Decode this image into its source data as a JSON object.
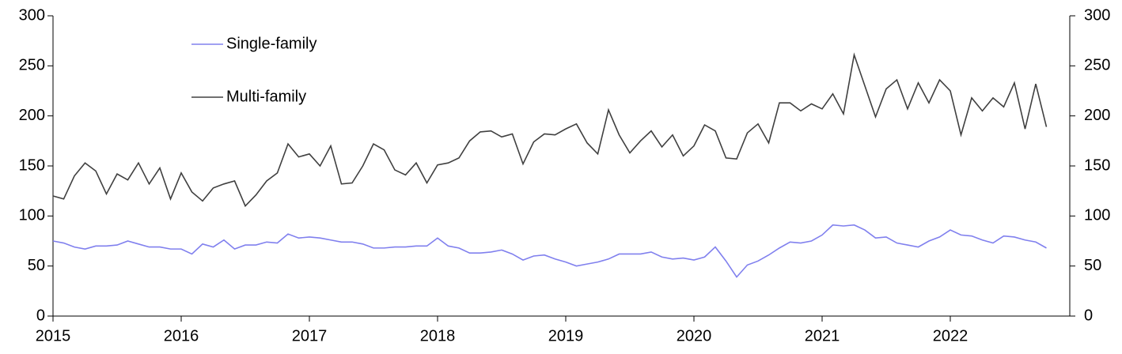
{
  "chart_data": {
    "type": "line",
    "categories": [
      "2015",
      null,
      null,
      null,
      null,
      null,
      null,
      null,
      null,
      null,
      null,
      null,
      "2016",
      null,
      null,
      null,
      null,
      null,
      null,
      null,
      null,
      null,
      null,
      null,
      "2017",
      null,
      null,
      null,
      null,
      null,
      null,
      null,
      null,
      null,
      null,
      null,
      "2018",
      null,
      null,
      null,
      null,
      null,
      null,
      null,
      null,
      null,
      null,
      null,
      "2019",
      null,
      null,
      null,
      null,
      null,
      null,
      null,
      null,
      null,
      null,
      null,
      "2020",
      null,
      null,
      null,
      null,
      null,
      null,
      null,
      null,
      null,
      null,
      null,
      "2021",
      null,
      null,
      null,
      null,
      null,
      null,
      null,
      null,
      null,
      null,
      null,
      "2022",
      null,
      null,
      null,
      null,
      null,
      null,
      null,
      null,
      null
    ],
    "series": [
      {
        "name": "Single-family",
        "color": "#8080ee",
        "values": [
          75,
          73,
          69,
          67,
          70,
          70,
          71,
          75,
          72,
          69,
          69,
          67,
          67,
          62,
          72,
          69,
          76,
          67,
          71,
          71,
          74,
          73,
          82,
          78,
          79,
          78,
          76,
          74,
          74,
          72,
          68,
          68,
          69,
          69,
          70,
          70,
          78,
          70,
          68,
          63,
          63,
          64,
          66,
          62,
          56,
          60,
          61,
          57,
          54,
          50,
          52,
          54,
          57,
          62,
          62,
          62,
          64,
          59,
          57,
          58,
          56,
          59,
          69,
          55,
          39,
          51,
          55,
          61,
          68,
          74,
          73,
          75,
          81,
          91,
          90,
          91,
          86,
          78,
          79,
          73,
          71,
          69,
          75,
          79,
          86,
          81,
          80,
          76,
          73,
          80,
          79,
          76,
          74,
          68
        ]
      },
      {
        "name": "Multi-family",
        "color": "#404040",
        "values": [
          120,
          117,
          140,
          153,
          145,
          122,
          142,
          136,
          153,
          132,
          148,
          117,
          143,
          124,
          115,
          128,
          132,
          135,
          110,
          121,
          135,
          143,
          172,
          159,
          162,
          150,
          170,
          132,
          133,
          150,
          172,
          166,
          146,
          141,
          153,
          133,
          151,
          153,
          158,
          175,
          184,
          185,
          179,
          182,
          152,
          174,
          182,
          181,
          187,
          192,
          173,
          162,
          206,
          181,
          163,
          175,
          185,
          169,
          181,
          160,
          170,
          191,
          185,
          158,
          157,
          183,
          192,
          173,
          213,
          213,
          205,
          212,
          207,
          222,
          202,
          261,
          230,
          199,
          227,
          236,
          207,
          233,
          213,
          236,
          225,
          181,
          218,
          205,
          218,
          209,
          233,
          187,
          232,
          189
        ]
      }
    ],
    "ylim": [
      0,
      300
    ],
    "yticks": [
      0,
      50,
      100,
      150,
      200,
      250,
      300
    ],
    "y2lim": [
      0,
      300
    ],
    "y2ticks": [
      0,
      50,
      100,
      150,
      200,
      250,
      300
    ],
    "legend": "upper left"
  }
}
